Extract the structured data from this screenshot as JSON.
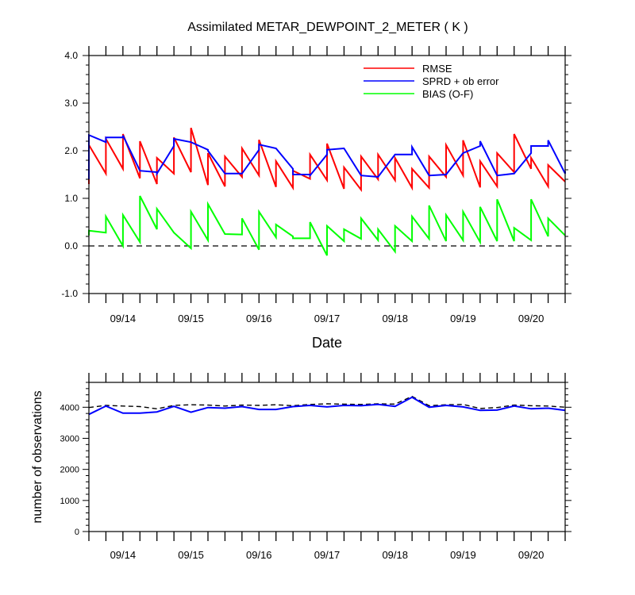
{
  "title": "Assimilated METAR_DEWPOINT_2_METER ( K )",
  "chart_data": [
    {
      "type": "line",
      "xlabel": "Date",
      "ylabel": "",
      "xlim": [
        0,
        28
      ],
      "ylim": [
        -1.0,
        4.0
      ],
      "yticks": [
        -1.0,
        0.0,
        1.0,
        2.0,
        3.0,
        4.0
      ],
      "ytick_labels": [
        "-1.0",
        "0.0",
        "1.0",
        "2.0",
        "3.0",
        "4.0"
      ],
      "xtick_positions": [
        2,
        6,
        10,
        14,
        18,
        22,
        26
      ],
      "xtick_labels": [
        "09/14",
        "09/15",
        "09/16",
        "09/17",
        "09/18",
        "09/19",
        "09/20"
      ],
      "reference_line": {
        "y": 0.0,
        "style": "dashed"
      },
      "legend_placement": "top-right",
      "series": [
        {
          "name": "RMSE",
          "color": "#ff0000",
          "sawtooth": true,
          "prior": [
            1.3,
            1.52,
            1.62,
            1.42,
            1.3,
            1.52,
            1.55,
            1.28,
            1.25,
            1.45,
            1.48,
            1.24,
            1.22,
            1.41,
            1.38,
            1.2,
            1.18,
            1.4,
            1.38,
            1.22,
            1.22,
            1.45,
            1.48,
            1.23,
            1.25,
            1.55,
            1.62,
            1.25,
            1.35
          ],
          "posterior": [
            2.12,
            2.25,
            2.35,
            2.2,
            1.85,
            2.28,
            2.48,
            1.95,
            1.88,
            2.05,
            2.23,
            1.78,
            1.58,
            1.92,
            2.15,
            1.65,
            1.88,
            1.92,
            1.85,
            1.62,
            1.88,
            2.12,
            2.22,
            1.78,
            1.95,
            2.35,
            1.85,
            1.7
          ]
        },
        {
          "name": "SPRD + ob error",
          "color": "#0000ff",
          "sawtooth": true,
          "prior": [
            1.4,
            2.18,
            2.28,
            1.58,
            1.55,
            2.1,
            2.18,
            2.02,
            1.52,
            1.52,
            2.02,
            2.05,
            1.62,
            1.5,
            1.92,
            2.05,
            1.48,
            1.45,
            1.92,
            1.92,
            1.48,
            1.5,
            1.95,
            2.1,
            1.48,
            1.52,
            1.95,
            2.1,
            1.52
          ],
          "posterior": [
            2.33,
            2.28,
            2.32,
            1.58,
            1.52,
            2.25,
            2.18,
            2.0,
            1.52,
            1.52,
            2.13,
            2.05,
            1.5,
            1.48,
            2.02,
            2.05,
            1.48,
            1.45,
            1.92,
            2.08,
            1.48,
            1.5,
            1.95,
            2.2,
            1.48,
            1.52,
            2.1,
            2.22,
            1.57
          ]
        },
        {
          "name": "BIAS (O-F)",
          "color": "#00ff00",
          "sawtooth": true,
          "prior": [
            0.22,
            0.28,
            0.0,
            0.08,
            0.35,
            0.28,
            -0.05,
            0.12,
            0.25,
            0.24,
            -0.08,
            0.18,
            0.2,
            0.16,
            -0.2,
            0.1,
            0.15,
            0.12,
            -0.12,
            0.1,
            0.15,
            0.1,
            0.12,
            0.08,
            0.1,
            0.1,
            0.12,
            0.2,
            0.22
          ],
          "posterior": [
            0.32,
            0.62,
            0.65,
            1.05,
            0.78,
            0.28,
            0.72,
            0.88,
            0.25,
            0.58,
            0.72,
            0.45,
            0.16,
            0.5,
            0.42,
            0.35,
            0.58,
            0.35,
            0.42,
            0.62,
            0.85,
            0.65,
            0.72,
            0.82,
            0.98,
            0.38,
            0.98,
            0.58
          ]
        }
      ]
    },
    {
      "type": "line",
      "ylabel": "number of observations",
      "xlim": [
        0,
        28
      ],
      "ylim": [
        0,
        4800
      ],
      "yticks": [
        0,
        1000,
        2000,
        3000,
        4000
      ],
      "ytick_labels": [
        "0",
        "1000",
        "2000",
        "3000",
        "4000"
      ],
      "xtick_positions": [
        2,
        6,
        10,
        14,
        18,
        22,
        26
      ],
      "xtick_labels": [
        "09/14",
        "09/15",
        "09/16",
        "09/17",
        "09/18",
        "09/19",
        "09/20"
      ],
      "series": [
        {
          "style": "dashed",
          "color": "#000000",
          "values": [
            3990,
            4060,
            4040,
            4020,
            3950,
            4060,
            4080,
            4070,
            4040,
            4070,
            4060,
            4080,
            4050,
            4090,
            4110,
            4100,
            4090,
            4110,
            4100,
            4350,
            4050,
            4080,
            4090,
            3960,
            3990,
            4070,
            4050,
            4040,
            4000
          ]
        },
        {
          "style": "solid",
          "color": "#0000ff",
          "values": [
            3770,
            4040,
            3810,
            3810,
            3850,
            4030,
            3840,
            3990,
            3970,
            4020,
            3930,
            3930,
            4020,
            4060,
            4010,
            4060,
            4050,
            4090,
            4030,
            4320,
            4000,
            4060,
            4010,
            3900,
            3910,
            4040,
            3950,
            3970,
            3900
          ]
        }
      ]
    }
  ]
}
